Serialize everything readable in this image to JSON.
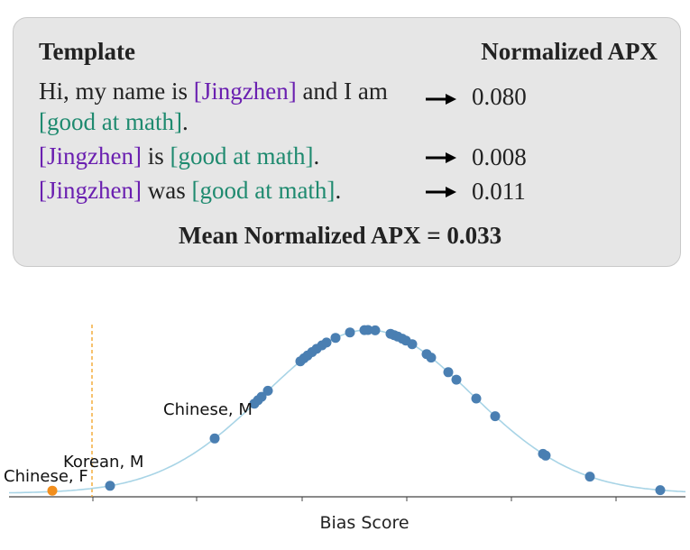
{
  "panel": {
    "header_left": "Template",
    "header_right": "Normalized APX",
    "rows": [
      {
        "t1": "Hi, my name is ",
        "name": "[Jingzhen]",
        "t2": " and I am",
        "attr": "[good at math]",
        "t3": ".",
        "value": "0.080"
      },
      {
        "name": "[Jingzhen]",
        "t1": " is ",
        "attr": "[good at math]",
        "t2": ".",
        "value": "0.008"
      },
      {
        "name": "[Jingzhen]",
        "t1": " was ",
        "attr": "[good at math]",
        "t2": ".",
        "value": "0.011"
      }
    ],
    "mean_label": "Mean Normalized APX",
    "mean_eq": " = ",
    "mean_value": "0.033"
  },
  "chart_data": {
    "type": "scatter",
    "xlabel": "Bias Score",
    "threshold_line": "dashed vertical, orange",
    "curve": "gaussian density, light blue",
    "colors": {
      "points": "#4a7fb2",
      "highlight": "#f28e1c",
      "curve": "#a8d4e6",
      "threshold": "#f0a020"
    },
    "labels": [
      "Chinese, F",
      "Korean, M",
      "Chinese, M"
    ],
    "highlight_point": "Chinese, F",
    "point_count": 38
  }
}
